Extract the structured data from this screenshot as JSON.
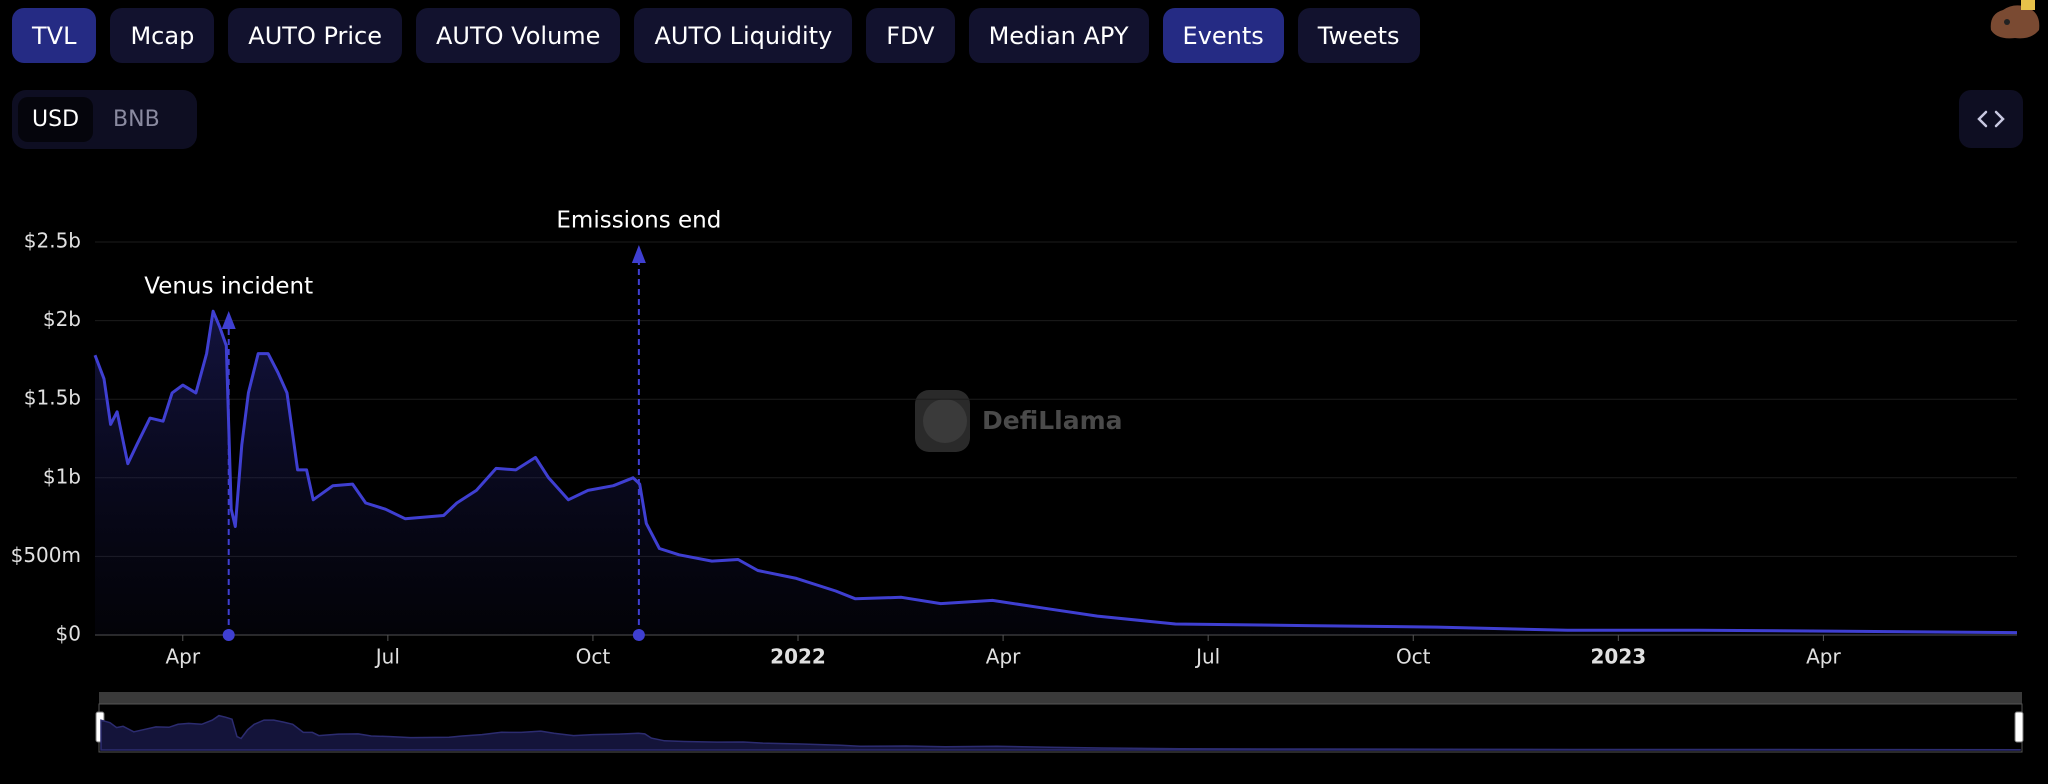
{
  "tabs": [
    {
      "label": "TVL",
      "active": true
    },
    {
      "label": "Mcap",
      "active": false
    },
    {
      "label": "AUTO Price",
      "active": false
    },
    {
      "label": "AUTO Volume",
      "active": false
    },
    {
      "label": "AUTO Liquidity",
      "active": false
    },
    {
      "label": "FDV",
      "active": false
    },
    {
      "label": "Median APY",
      "active": false
    },
    {
      "label": "Events",
      "active": true
    },
    {
      "label": "Tweets",
      "active": false
    }
  ],
  "denominations": [
    {
      "label": "USD",
      "active": true
    },
    {
      "label": "BNB",
      "active": false
    }
  ],
  "watermark": "DefiLlama",
  "chart_data": {
    "type": "area",
    "color": "#3f3fd1",
    "x": [
      2021.143,
      2021.154,
      2021.162,
      2021.17,
      2021.183,
      2021.194,
      2021.21,
      2021.226,
      2021.237,
      2021.25,
      2021.266,
      2021.279,
      2021.287,
      2021.295,
      2021.303,
      2021.309,
      2021.314,
      2021.322,
      2021.33,
      2021.342,
      2021.354,
      2021.366,
      2021.377,
      2021.39,
      2021.401,
      2021.409,
      2021.433,
      2021.457,
      2021.473,
      2021.497,
      2021.521,
      2021.568,
      2021.584,
      2021.608,
      2021.632,
      2021.656,
      2021.68,
      2021.696,
      2021.72,
      2021.744,
      2021.775,
      2021.799,
      2021.807,
      2021.815,
      2021.831,
      2021.855,
      2021.895,
      2021.927,
      2021.951,
      2021.998,
      2022.046,
      2022.07,
      2022.126,
      2022.174,
      2022.237,
      2022.301,
      2022.365,
      2022.46,
      2022.619,
      2022.779,
      2022.938,
      2023.097,
      2023.256,
      2023.486
    ],
    "values": [
      1.78,
      1.63,
      1.34,
      1.42,
      1.09,
      1.21,
      1.38,
      1.36,
      1.54,
      1.59,
      1.54,
      1.79,
      2.06,
      1.96,
      1.84,
      0.8,
      0.69,
      1.21,
      1.54,
      1.79,
      1.79,
      1.67,
      1.54,
      1.05,
      1.05,
      0.86,
      0.95,
      0.96,
      0.84,
      0.8,
      0.74,
      0.76,
      0.84,
      0.92,
      1.06,
      1.05,
      1.13,
      1.0,
      0.86,
      0.92,
      0.95,
      1.0,
      0.96,
      0.71,
      0.55,
      0.51,
      0.47,
      0.48,
      0.41,
      0.36,
      0.28,
      0.23,
      0.24,
      0.2,
      0.22,
      0.17,
      0.12,
      0.07,
      0.06,
      0.05,
      0.03,
      0.03,
      0.025,
      0.015
    ],
    "xlim": [
      2021.143,
      2023.486
    ],
    "xticks": [
      {
        "value": 2021.25,
        "label": "Apr"
      },
      {
        "value": 2021.5,
        "label": "Jul"
      },
      {
        "value": 2021.75,
        "label": "Oct"
      },
      2022,
      {
        "value": 2022.25,
        "label": "Apr"
      },
      {
        "value": 2022.5,
        "label": "Jul"
      },
      {
        "value": 2022.75,
        "label": "Oct"
      },
      2023,
      {
        "value": 2023.25,
        "label": "Apr"
      }
    ],
    "ylim": [
      0,
      2.5
    ],
    "yticks": [
      {
        "value": 0,
        "label": "$0"
      },
      {
        "value": 0.5,
        "label": "$500m"
      },
      {
        "value": 1,
        "label": "$1b"
      },
      {
        "value": 1.5,
        "label": "$1.5b"
      },
      {
        "value": 2,
        "label": "$2b"
      },
      {
        "value": 2.5,
        "label": "$2.5b"
      }
    ],
    "grid": true,
    "events": [
      {
        "label": "Venus incident",
        "x": 2021.306
      },
      {
        "label": "Emissions end",
        "x": 2021.806
      }
    ]
  }
}
